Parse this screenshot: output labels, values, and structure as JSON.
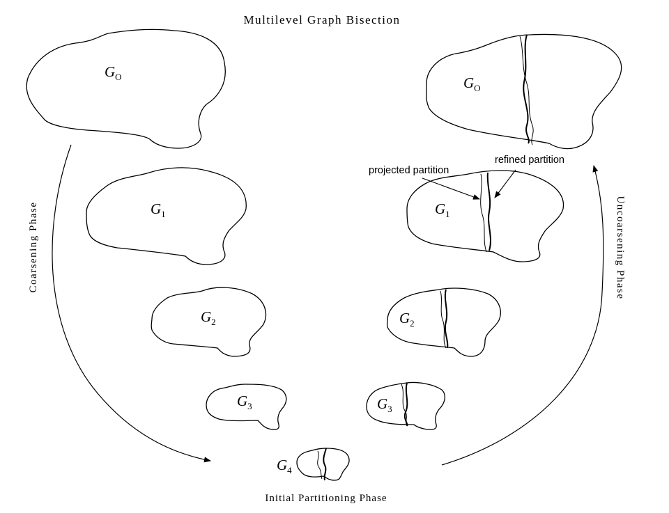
{
  "title": "Multilevel Graph Bisection",
  "phases": {
    "coarsening": "Coarsening Phase",
    "uncoarsening": "Uncoarsening Phase",
    "initial": "Initial Partitioning Phase"
  },
  "annotations": {
    "projected": "projected partition",
    "refined": "refined partition"
  },
  "graphs": {
    "left": [
      {
        "base": "G",
        "sub": "O"
      },
      {
        "base": "G",
        "sub": "1"
      },
      {
        "base": "G",
        "sub": "2"
      },
      {
        "base": "G",
        "sub": "3"
      }
    ],
    "right": [
      {
        "base": "G",
        "sub": "O"
      },
      {
        "base": "G",
        "sub": "1"
      },
      {
        "base": "G",
        "sub": "2"
      },
      {
        "base": "G",
        "sub": "3"
      }
    ],
    "bottom": {
      "base": "G",
      "sub": "4"
    }
  }
}
